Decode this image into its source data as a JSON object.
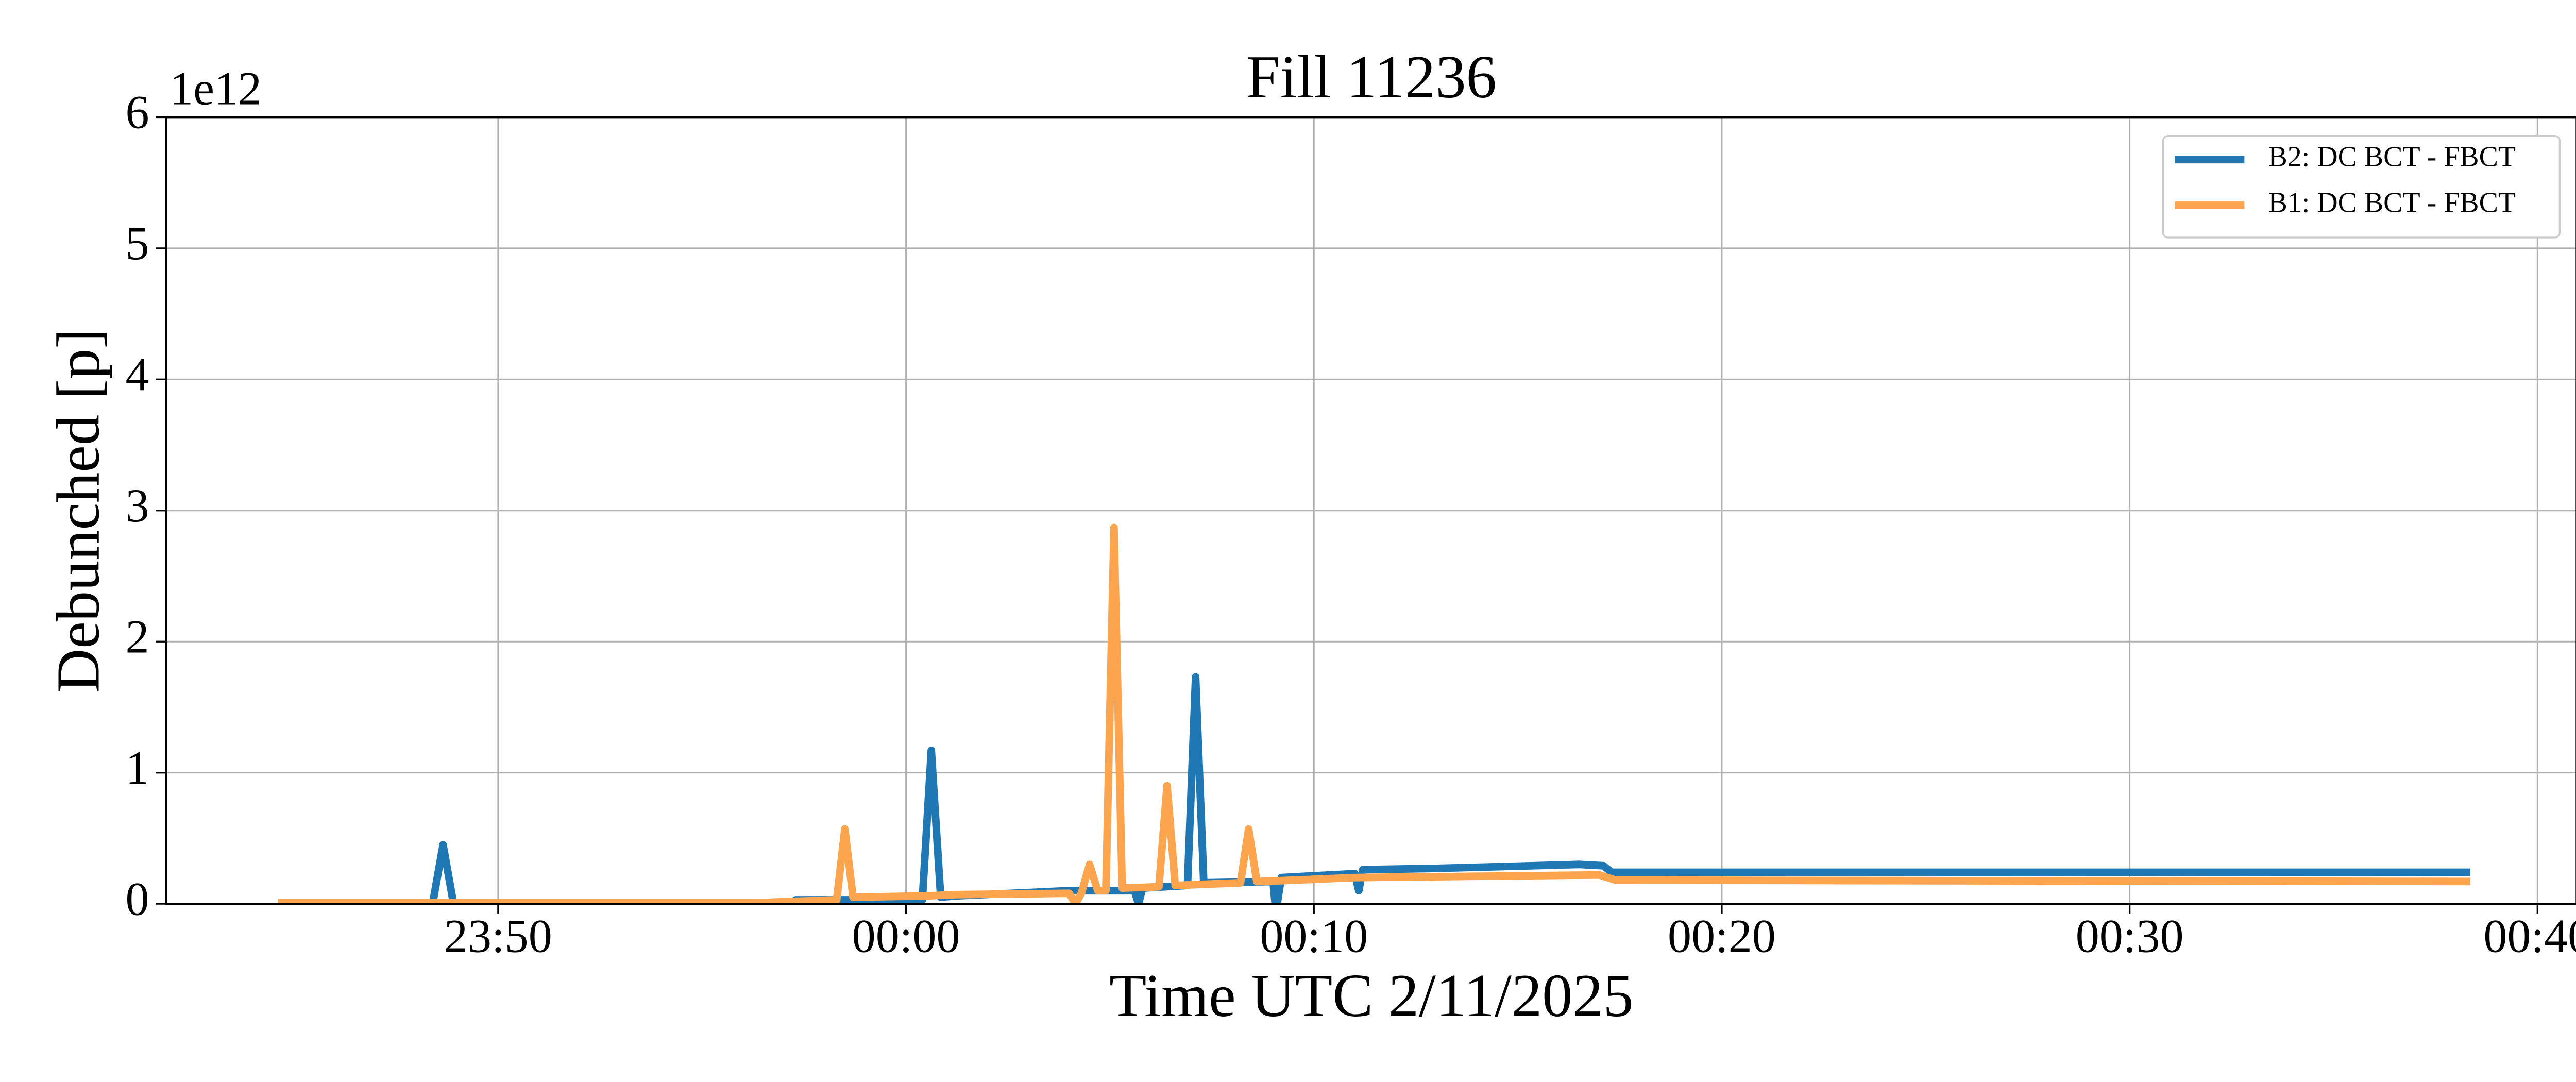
{
  "chart_data": {
    "type": "line",
    "title": "Fill 11236",
    "x_label": "Time UTC 2/11/2025",
    "y_label": "Debunched [p]",
    "y_offset_text": "1e12",
    "xlim": [
      -18.14,
      40.96
    ],
    "xticks": [
      {
        "value": -10,
        "label": "23:50"
      },
      {
        "value": 0,
        "label": "00:00"
      },
      {
        "value": 10,
        "label": "00:10"
      },
      {
        "value": 20,
        "label": "00:20"
      },
      {
        "value": 30,
        "label": "00:30"
      },
      {
        "value": 40,
        "label": "00:40"
      }
    ],
    "ylim": [
      0,
      6
    ],
    "yticks": [
      0,
      1,
      2,
      3,
      4,
      5,
      6
    ],
    "grid": true,
    "legend": "upper right",
    "series": [
      {
        "name": "B2: DC BCT - FBCT",
        "color": "#1f77b4",
        "x": [
          -15.4,
          -11.6,
          -11.35,
          -11.1,
          -2.8,
          -2.7,
          0.4,
          0.62,
          0.85,
          1.2,
          4.0,
          5.6,
          5.7,
          5.8,
          6.9,
          7.1,
          7.3,
          9.0,
          9.05,
          9.1,
          9.2,
          11.0,
          11.1,
          11.2,
          13.0,
          16.5,
          17.1,
          17.3,
          38.35
        ],
        "values": [
          0.01,
          0.01,
          0.45,
          0.01,
          0.01,
          0.03,
          0.03,
          1.17,
          0.05,
          0.06,
          0.1,
          0.1,
          0.0,
          0.12,
          0.14,
          1.73,
          0.16,
          0.17,
          0.0,
          0.0,
          0.2,
          0.23,
          0.1,
          0.26,
          0.27,
          0.3,
          0.29,
          0.24,
          0.24
        ]
      },
      {
        "name": "B1: DC BCT - FBCT",
        "color": "#fca54e",
        "x": [
          -15.4,
          -3.5,
          -1.7,
          -1.5,
          -1.3,
          0.5,
          1.2,
          4.0,
          4.15,
          4.3,
          4.5,
          4.7,
          4.9,
          5.1,
          5.3,
          6.2,
          6.4,
          6.6,
          8.2,
          8.4,
          8.6,
          9.5,
          11.0,
          17.0,
          17.4,
          38.35
        ],
        "values": [
          0.01,
          0.01,
          0.03,
          0.57,
          0.05,
          0.06,
          0.07,
          0.08,
          0.0,
          0.08,
          0.3,
          0.1,
          0.1,
          2.87,
          0.12,
          0.13,
          0.9,
          0.14,
          0.16,
          0.57,
          0.17,
          0.18,
          0.2,
          0.22,
          0.18,
          0.17
        ]
      }
    ]
  }
}
